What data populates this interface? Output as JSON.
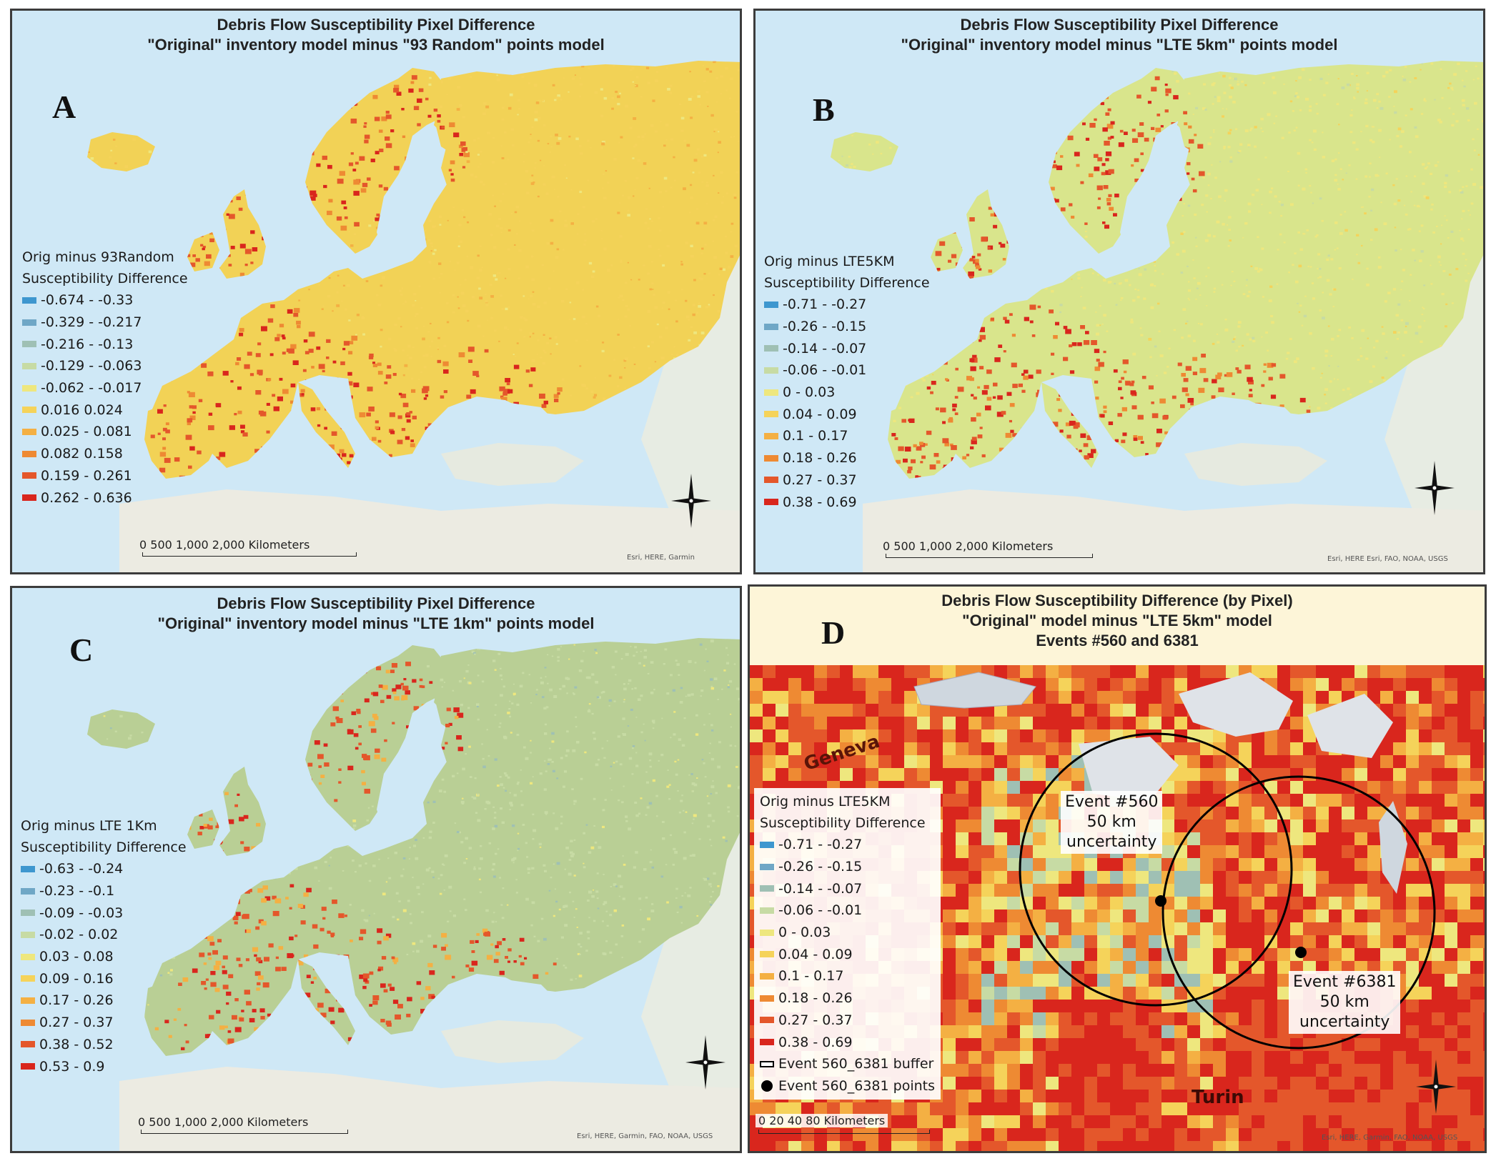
{
  "colors": {
    "sea": "#cfe8f6",
    "neutral_land": "#e9efe7",
    "classes": [
      "#3e97cf",
      "#6fa7c6",
      "#9fc0b4",
      "#c7dba4",
      "#eee77e",
      "#f5d35a",
      "#f4b043",
      "#ee8a33",
      "#e4572b",
      "#d9261d"
    ],
    "panel_land_base": {
      "A": "#f2d256",
      "B": "#d9e58c",
      "C": "#b9cf95"
    }
  },
  "panels": [
    {
      "id": "A",
      "letter": "A",
      "title_lines": [
        "Debris Flow Susceptibility Pixel Difference",
        "\"Original\" inventory model minus \"93 Random\" points model"
      ],
      "legend": {
        "title_lines": [
          "Orig minus 93Random",
          "Susceptibility Difference"
        ],
        "classes": [
          "-0.674 - -0.33",
          "-0.329 - -0.217",
          "-0.216 - -0.13",
          "-0.129 - -0.063",
          "-0.062 - -0.017",
          "0.016 0.024",
          "0.025 - 0.081",
          "0.082 0.158",
          "0.159 - 0.261",
          "0.262 - 0.636"
        ]
      },
      "scale_text": "0   500 1,000      2,000 Kilometers",
      "credit": "Esri, HERE, Garmin"
    },
    {
      "id": "B",
      "letter": "B",
      "title_lines": [
        "Debris Flow Susceptibility Pixel Difference",
        "\"Original\" inventory model minus \"LTE 5km\" points model"
      ],
      "legend": {
        "title_lines": [
          "Orig minus LTE5KM",
          "Susceptibility Difference"
        ],
        "classes": [
          "-0.71 - -0.27",
          "-0.26 - -0.15",
          "-0.14 - -0.07",
          "-0.06 - -0.01",
          "0 - 0.03",
          "0.04 - 0.09",
          "0.1 - 0.17",
          "0.18 - 0.26",
          "0.27 - 0.37",
          "0.38 - 0.69"
        ]
      },
      "scale_text": "0    500 1,000      2,000 Kilometers",
      "credit": "Esri, HERE    Esri, FAO, NOAA, USGS"
    },
    {
      "id": "C",
      "letter": "C",
      "title_lines": [
        "Debris Flow Susceptibility Pixel Difference",
        "\"Original\" inventory model minus \"LTE 1km\" points model"
      ],
      "legend": {
        "title_lines": [
          "Orig minus LTE 1Km",
          "Susceptibility Difference"
        ],
        "classes": [
          "-0.63 - -0.24",
          "-0.23 - -0.1",
          "-0.09 - -0.03",
          "-0.02 - 0.02",
          "0.03 - 0.08",
          "0.09 - 0.16",
          "0.17 - 0.26",
          "0.27 - 0.37",
          "0.38 - 0.52",
          "0.53 - 0.9"
        ]
      },
      "scale_text": "0   500 1,000      2,000 Kilometers",
      "credit": "Esri, HERE, Garmin, FAO, NOAA, USGS"
    },
    {
      "id": "D",
      "letter": "D",
      "title_lines": [
        "Debris Flow Susceptibility Difference (by Pixel)",
        "\"Original\" model minus \"LTE 5km\" model",
        "Events #560 and 6381"
      ],
      "legend": {
        "title_lines": [
          "Orig minus LTE5KM",
          "Susceptibility Difference"
        ],
        "classes": [
          "-0.71 - -0.27",
          "-0.26 - -0.15",
          "-0.14 - -0.07",
          "-0.06 - -0.01",
          "0 - 0.03",
          "0.04 - 0.09",
          "0.1 - 0.17",
          "0.18 - 0.26",
          "0.27 - 0.37",
          "0.38 - 0.69"
        ],
        "extra": [
          "Event 560_6381 buffer",
          "Event 560_6381 points"
        ]
      },
      "places": {
        "geneva": "Geneva",
        "turin": "Turin"
      },
      "events": [
        {
          "lines": [
            "Event #560",
            "50 km",
            "uncertainty"
          ]
        },
        {
          "lines": [
            "Event #6381",
            "50 km",
            "uncertainty"
          ]
        }
      ],
      "scale_text": "0     20    40            80 Kilometers",
      "credit": "Esri, HERE, Garmin, FAO, NOAA, USGS"
    }
  ]
}
